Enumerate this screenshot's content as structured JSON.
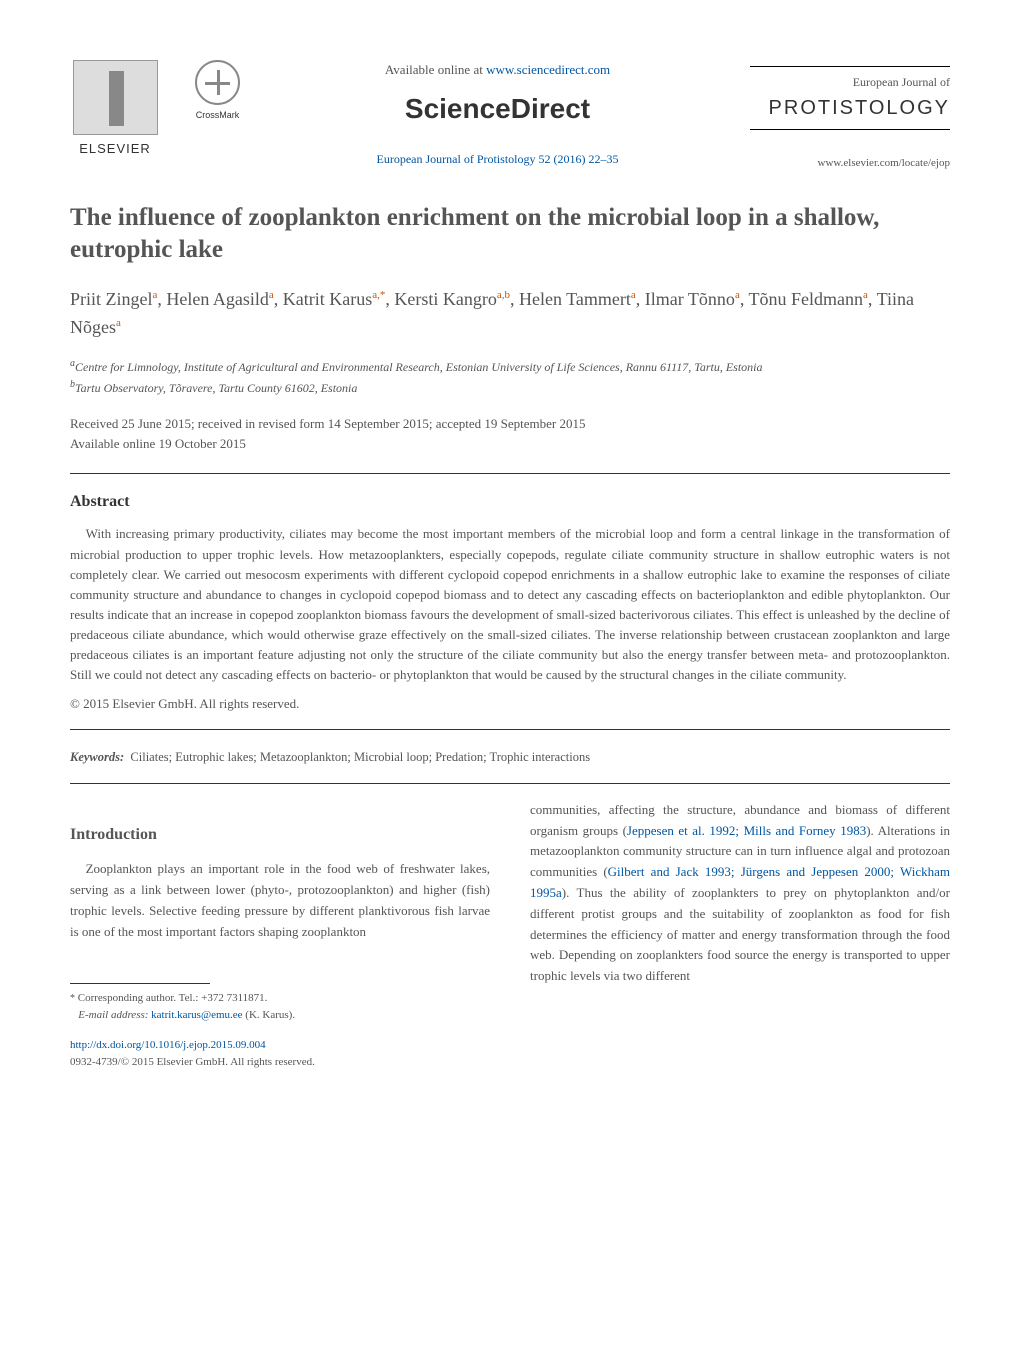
{
  "header": {
    "elsevier_label": "ELSEVIER",
    "crossmark_label": "CrossMark",
    "available_online_pre": "Available online at ",
    "available_online_url": "www.sciencedirect.com",
    "sciencedirect": "ScienceDirect",
    "citation": "European Journal of Protistology 52 (2016) 22–35",
    "journal_sup": "European Journal of",
    "journal_name": "PROTISTOLOGY",
    "journal_url": "www.elsevier.com/locate/ejop"
  },
  "title": "The influence of zooplankton enrichment on the microbial loop in a shallow, eutrophic lake",
  "authors": {
    "a1_name": "Priit Zingel",
    "a1_aff": "a",
    "a2_name": "Helen Agasild",
    "a2_aff": "a",
    "a3_name": "Katrit Karus",
    "a3_aff": "a,*",
    "a4_name": "Kersti Kangro",
    "a4_aff": "a,b",
    "a5_name": "Helen Tammert",
    "a5_aff": "a",
    "a6_name": "Ilmar Tõnno",
    "a6_aff": "a",
    "a7_name": "Tõnu Feldmann",
    "a7_aff": "a",
    "a8_name": "Tiina Nõges",
    "a8_aff": "a"
  },
  "affiliations": {
    "a_label": "a",
    "a_text": "Centre for Limnology, Institute of Agricultural and Environmental Research, Estonian University of Life Sciences, Rannu 61117, Tartu, Estonia",
    "b_label": "b",
    "b_text": "Tartu Observatory, Tõravere, Tartu County 61602, Estonia"
  },
  "dates": {
    "line1": "Received 25 June 2015; received in revised form 14 September 2015; accepted 19 September 2015",
    "line2": "Available online 19 October 2015"
  },
  "abstract": {
    "heading": "Abstract",
    "text": "With increasing primary productivity, ciliates may become the most important members of the microbial loop and form a central linkage in the transformation of microbial production to upper trophic levels. How metazooplankters, especially copepods, regulate ciliate community structure in shallow eutrophic waters is not completely clear. We carried out mesocosm experiments with different cyclopoid copepod enrichments in a shallow eutrophic lake to examine the responses of ciliate community structure and abundance to changes in cyclopoid copepod biomass and to detect any cascading effects on bacterioplankton and edible phytoplankton. Our results indicate that an increase in copepod zooplankton biomass favours the development of small-sized bacterivorous ciliates. This effect is unleashed by the decline of predaceous ciliate abundance, which would otherwise graze effectively on the small-sized ciliates. The inverse relationship between crustacean zooplankton and large predaceous ciliates is an important feature adjusting not only the structure of the ciliate community but also the energy transfer between meta- and protozooplankton. Still we could not detect any cascading effects on bacterio- or phytoplankton that would be caused by the structural changes in the ciliate community.",
    "copyright": "© 2015 Elsevier GmbH. All rights reserved."
  },
  "keywords": {
    "label": "Keywords:",
    "text": "Ciliates; Eutrophic lakes; Metazooplankton; Microbial loop; Predation; Trophic interactions"
  },
  "intro": {
    "heading": "Introduction",
    "col1_text": "Zooplankton plays an important role in the food web of freshwater lakes, serving as a link between lower (phyto-, protozooplankton) and higher (fish) trophic levels. Selective feeding pressure by different planktivorous fish larvae is one of the most important factors shaping zooplankton",
    "col2_pre": "communities, affecting the structure, abundance and biomass of different organism groups (",
    "col2_ref1": "Jeppesen et al. 1992; Mills and Forney 1983",
    "col2_mid1": "). Alterations in metazooplankton community structure can in turn influence algal and protozoan communities (",
    "col2_ref2": "Gilbert and Jack 1993; Jürgens and Jeppesen 2000; Wickham 1995a",
    "col2_mid2": "). Thus the ability of zooplankters to prey on phytoplankton and/or different protist groups and the suitability of zooplankton as food for fish determines the efficiency of matter and energy transformation through the food web. Depending on zooplankters food source the energy is transported to upper trophic levels via two different"
  },
  "footnotes": {
    "corresponding": "Corresponding author. Tel.: +372 7311871.",
    "email_label": "E-mail address:",
    "email": "katrit.karus@emu.ee",
    "email_post": " (K. Karus).",
    "doi": "http://dx.doi.org/10.1016/j.ejop.2015.09.004",
    "issn": "0932-4739/© 2015 Elsevier GmbH. All rights reserved."
  },
  "colors": {
    "link": "#0056a3",
    "text_muted": "#555555",
    "sup_orange": "#cc5500"
  }
}
